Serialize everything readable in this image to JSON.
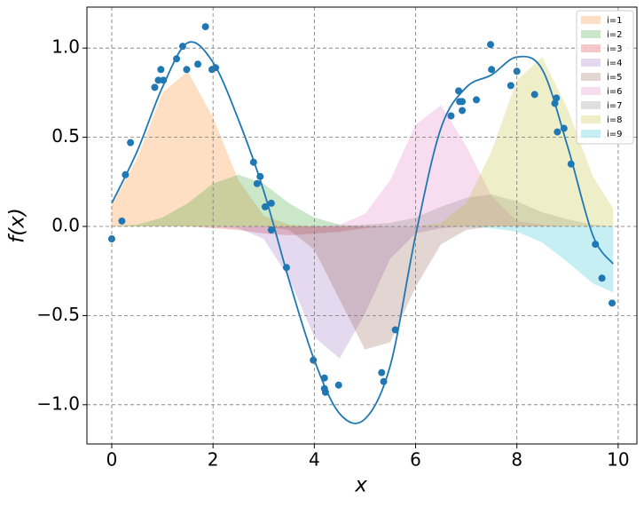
{
  "chart_data": {
    "type": "line",
    "x_label": "x",
    "y_label": "f(x)",
    "x": [
      0,
      0.5,
      1,
      1.5,
      2,
      2.5,
      3,
      3.5,
      4,
      4.5,
      5,
      5.5,
      6,
      6.5,
      7,
      7.5,
      8,
      8.5,
      9,
      9.5,
      9.9
    ],
    "xlim": [
      -0.49,
      10.37
    ],
    "ylim": [
      -1.22,
      1.23
    ],
    "xticks": [
      0,
      2,
      4,
      6,
      8,
      10
    ],
    "yticks": [
      {
        "value": -1,
        "label": "−1.0"
      },
      {
        "value": -0.5,
        "label": "−0.5"
      },
      {
        "value": 0,
        "label": "0.0"
      },
      0.5,
      {
        "value": 1,
        "label": "1.0"
      }
    ],
    "grid": true,
    "legend": "upper right",
    "series": [
      {
        "type": "area",
        "name": "i=1",
        "color": "#ff7f0e",
        "values": [
          0.12,
          0.38,
          0.75,
          0.87,
          0.61,
          0.26,
          0.06,
          0.01,
          0,
          0,
          0,
          0,
          0,
          0,
          0,
          0,
          0,
          0,
          0,
          0,
          0
        ]
      },
      {
        "type": "area",
        "name": "i=2",
        "color": "#2ca02c",
        "values": [
          0,
          0.01,
          0.05,
          0.13,
          0.24,
          0.29,
          0.24,
          0.13,
          0.05,
          0.01,
          0,
          0,
          0,
          0,
          0,
          0,
          0,
          0,
          0,
          0,
          0
        ]
      },
      {
        "type": "area",
        "name": "i=3",
        "color": "#d62728",
        "values": [
          0,
          0,
          0,
          0,
          -0.01,
          -0.02,
          -0.04,
          -0.05,
          -0.04,
          -0.03,
          -0.01,
          0,
          0,
          0,
          0,
          0,
          0,
          0,
          0,
          0,
          0
        ]
      },
      {
        "type": "area",
        "name": "i=4",
        "color": "#9467bd",
        "values": [
          0,
          0,
          0,
          0,
          0,
          -0.01,
          -0.07,
          -0.29,
          -0.62,
          -0.74,
          -0.49,
          -0.18,
          -0.04,
          -0.01,
          0,
          0,
          0,
          0,
          0,
          0,
          0
        ]
      },
      {
        "type": "area",
        "name": "i=5",
        "color": "#8c564b",
        "values": [
          0,
          0,
          0,
          0,
          0,
          0,
          0,
          -0.02,
          -0.13,
          -0.41,
          -0.69,
          -0.65,
          -0.34,
          -0.1,
          -0.02,
          0,
          0,
          0,
          0,
          0,
          0
        ]
      },
      {
        "type": "area",
        "name": "i=6",
        "color": "#e377c2",
        "values": [
          0,
          0,
          0,
          0,
          0,
          0,
          0,
          0,
          0,
          0.01,
          0.07,
          0.26,
          0.57,
          0.68,
          0.45,
          0.17,
          0.03,
          0.01,
          0,
          0,
          0
        ]
      },
      {
        "type": "area",
        "name": "i=7",
        "color": "#7f7f7f",
        "values": [
          0,
          0,
          0,
          0,
          0,
          0,
          0,
          0,
          0,
          0,
          0.01,
          0.02,
          0.05,
          0.11,
          0.16,
          0.18,
          0.14,
          0.08,
          0.04,
          0.01,
          0
        ]
      },
      {
        "type": "area",
        "name": "i=8",
        "color": "#bcbd22",
        "values": [
          0,
          0,
          0,
          0,
          0,
          0,
          0,
          0,
          0,
          0,
          0,
          0,
          0,
          0.02,
          0.13,
          0.42,
          0.82,
          0.95,
          0.66,
          0.28,
          0.1
        ]
      },
      {
        "type": "area",
        "name": "i=9",
        "color": "#17becf",
        "values": [
          0,
          0,
          0,
          0,
          0,
          0,
          0,
          0,
          0,
          0,
          0,
          0,
          0,
          0,
          0,
          -0.01,
          -0.03,
          -0.09,
          -0.2,
          -0.32,
          -0.37
        ]
      },
      {
        "type": "line",
        "color": "#1f77b4",
        "values": [
          0.13,
          0.42,
          0.78,
          1.03,
          0.92,
          0.6,
          0.2,
          -0.3,
          -0.75,
          -1.05,
          -1.08,
          -0.78,
          -0.05,
          0.55,
          0.78,
          0.85,
          0.95,
          0.88,
          0.45,
          -0.05,
          -0.21
        ]
      },
      {
        "type": "scatter",
        "color": "#1f77b4",
        "x": [
          0,
          0.2,
          0.27,
          0.37,
          0.85,
          0.92,
          0.97,
          1.02,
          1.28,
          1.4,
          1.48,
          1.7,
          1.85,
          1.98,
          2.05,
          2.8,
          2.87,
          2.93,
          3.03,
          3.15,
          3.15,
          3.45,
          3.98,
          4.2,
          4.2,
          4.22,
          4.48,
          5.33,
          5.37,
          5.6,
          6.7,
          6.85,
          6.87,
          6.92,
          6.92,
          7.2,
          7.48,
          7.5,
          7.88,
          8.0,
          8.35,
          8.75,
          8.78,
          8.8,
          8.93,
          9.07,
          9.55,
          9.68,
          9.88
        ],
        "values": [
          -0.07,
          0.03,
          0.29,
          0.47,
          0.78,
          0.82,
          0.88,
          0.82,
          0.94,
          1.01,
          0.88,
          0.91,
          1.12,
          0.88,
          0.89,
          0.36,
          0.24,
          0.28,
          0.11,
          -0.02,
          0.13,
          -0.23,
          -0.75,
          -0.85,
          -0.91,
          -0.93,
          -0.89,
          -0.82,
          -0.87,
          -0.58,
          0.62,
          0.76,
          0.7,
          0.7,
          0.65,
          0.71,
          1.02,
          0.88,
          0.79,
          0.87,
          0.74,
          0.69,
          0.72,
          0.53,
          0.55,
          0.35,
          -0.1,
          -0.29,
          -0.43
        ]
      }
    ]
  }
}
